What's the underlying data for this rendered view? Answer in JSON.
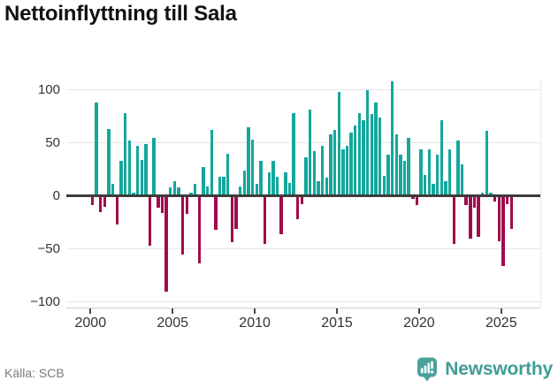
{
  "chart_data": {
    "type": "bar",
    "title": "Nettoinflyttning till Sala",
    "frequency": "quarterly",
    "grid": "horizontal",
    "ylim": [
      -100,
      110
    ],
    "colors": {
      "positive": "#14a79c",
      "negative": "#a00c4b"
    },
    "y_axis": {
      "ticks": [
        {
          "v": 100,
          "label": "100"
        },
        {
          "v": 50,
          "label": "50"
        },
        {
          "v": 0,
          "label": "0"
        },
        {
          "v": -50,
          "label": "−50"
        },
        {
          "v": -100,
          "label": "−100"
        }
      ]
    },
    "x_axis": {
      "year_ticks": [
        {
          "year": 2000,
          "label": "2000"
        },
        {
          "year": 2005,
          "label": "2005"
        },
        {
          "year": 2010,
          "label": "2010"
        },
        {
          "year": 2015,
          "label": "2015"
        },
        {
          "year": 2020,
          "label": "2020"
        },
        {
          "year": 2025,
          "label": "2025"
        }
      ]
    },
    "series_by_year": [
      {
        "year": 2000,
        "values": [
          -9,
          88,
          -15,
          -10
        ]
      },
      {
        "year": 2001,
        "values": [
          63,
          11,
          -27,
          33
        ]
      },
      {
        "year": 2002,
        "values": [
          78,
          52,
          3,
          47
        ]
      },
      {
        "year": 2003,
        "values": [
          34,
          49,
          -47,
          55
        ]
      },
      {
        "year": 2004,
        "values": [
          -11,
          -16,
          -90,
          8
        ]
      },
      {
        "year": 2005,
        "values": [
          14,
          8,
          -55,
          -17
        ]
      },
      {
        "year": 2006,
        "values": [
          3,
          11,
          -64,
          27
        ]
      },
      {
        "year": 2007,
        "values": [
          9,
          62,
          -32,
          18
        ]
      },
      {
        "year": 2008,
        "values": [
          18,
          40,
          -44,
          -31
        ]
      },
      {
        "year": 2009,
        "values": [
          9,
          24,
          65,
          53
        ]
      },
      {
        "year": 2010,
        "values": [
          11,
          33,
          -45,
          22
        ]
      },
      {
        "year": 2011,
        "values": [
          33,
          18,
          -36,
          22
        ]
      },
      {
        "year": 2012,
        "values": [
          12,
          78,
          -22,
          -8
        ]
      },
      {
        "year": 2013,
        "values": [
          36,
          81,
          42,
          14
        ]
      },
      {
        "year": 2014,
        "values": [
          47,
          17,
          58,
          62
        ]
      },
      {
        "year": 2015,
        "values": [
          98,
          44,
          47,
          60
        ]
      },
      {
        "year": 2016,
        "values": [
          66,
          78,
          71,
          100
        ]
      },
      {
        "year": 2017,
        "values": [
          77,
          88,
          74,
          19
        ]
      },
      {
        "year": 2018,
        "values": [
          39,
          108,
          58,
          39
        ]
      },
      {
        "year": 2019,
        "values": [
          33,
          55,
          -3,
          -9
        ]
      },
      {
        "year": 2020,
        "values": [
          44,
          20,
          44,
          11
        ]
      },
      {
        "year": 2021,
        "values": [
          39,
          71,
          14,
          44
        ]
      },
      {
        "year": 2022,
        "values": [
          -45,
          52,
          30,
          -9
        ]
      },
      {
        "year": 2023,
        "values": [
          -40,
          -11,
          -39,
          3
        ]
      },
      {
        "year": 2024,
        "values": [
          61,
          3,
          -5,
          -43
        ]
      },
      {
        "year": 2025,
        "values": [
          -66,
          -8,
          -31
        ]
      }
    ]
  },
  "footer": {
    "source": "Källa: SCB",
    "brand": "Newsworthy",
    "brand_color": "#3f9d95"
  }
}
